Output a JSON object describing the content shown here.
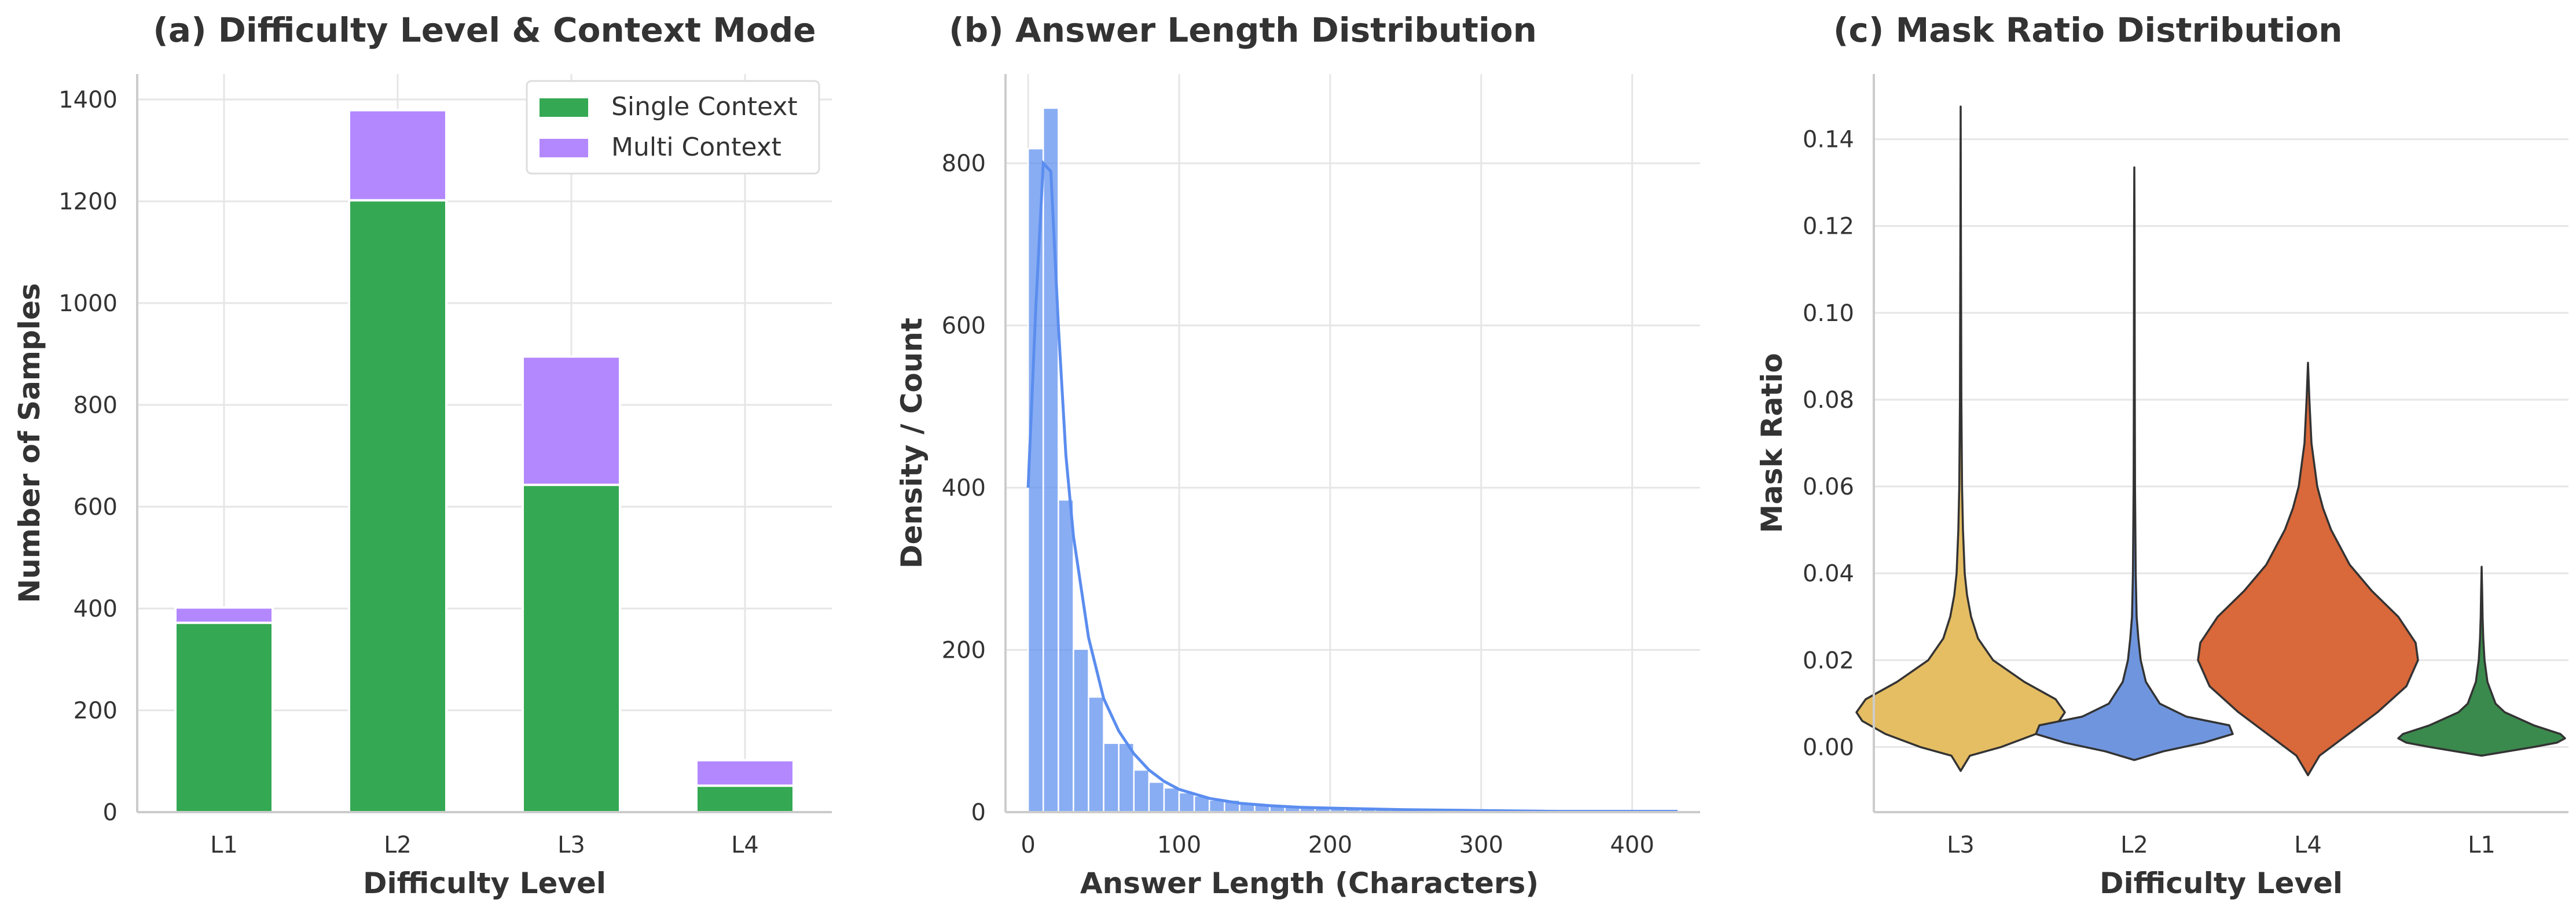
{
  "chart_data": [
    {
      "type": "bar",
      "title": "(a) Difficulty Level & Context Mode",
      "xlabel": "Difficulty Level",
      "ylabel": "Number of Samples",
      "categories": [
        "L1",
        "L2",
        "L3",
        "L4"
      ],
      "stacked": true,
      "series": [
        {
          "name": "Single Context",
          "color": "#34a853",
          "values": [
            372,
            1202,
            643,
            52
          ]
        },
        {
          "name": "Multi Context",
          "color": "#b388ff",
          "values": [
            30,
            177,
            252,
            50
          ]
        }
      ],
      "ylim": [
        0,
        1450
      ],
      "yticks": [
        0,
        200,
        400,
        600,
        800,
        1000,
        1200,
        1400
      ],
      "grid": true,
      "legend_position": "top-right"
    },
    {
      "type": "histogram",
      "title": "(b) Answer Length Distribution",
      "xlabel": "Answer Length (Characters)",
      "ylabel": "Density / Count",
      "color": "#5b8def",
      "bin_width": 10,
      "bins": [
        {
          "start": 0,
          "end": 10,
          "count": 818
        },
        {
          "start": 10,
          "end": 20,
          "count": 868
        },
        {
          "start": 20,
          "end": 30,
          "count": 385
        },
        {
          "start": 30,
          "end": 40,
          "count": 201
        },
        {
          "start": 40,
          "end": 50,
          "count": 142
        },
        {
          "start": 50,
          "end": 60,
          "count": 85
        },
        {
          "start": 60,
          "end": 70,
          "count": 85
        },
        {
          "start": 70,
          "end": 80,
          "count": 52
        },
        {
          "start": 80,
          "end": 90,
          "count": 37
        },
        {
          "start": 90,
          "end": 100,
          "count": 30
        },
        {
          "start": 100,
          "end": 110,
          "count": 24
        },
        {
          "start": 110,
          "end": 120,
          "count": 20
        },
        {
          "start": 120,
          "end": 130,
          "count": 15
        },
        {
          "start": 130,
          "end": 140,
          "count": 15
        },
        {
          "start": 140,
          "end": 150,
          "count": 10
        },
        {
          "start": 150,
          "end": 160,
          "count": 9
        },
        {
          "start": 160,
          "end": 170,
          "count": 8
        },
        {
          "start": 170,
          "end": 180,
          "count": 8
        },
        {
          "start": 180,
          "end": 190,
          "count": 7
        },
        {
          "start": 190,
          "end": 200,
          "count": 6
        },
        {
          "start": 200,
          "end": 210,
          "count": 6
        },
        {
          "start": 210,
          "end": 220,
          "count": 5
        },
        {
          "start": 220,
          "end": 230,
          "count": 5
        },
        {
          "start": 230,
          "end": 240,
          "count": 5
        },
        {
          "start": 240,
          "end": 250,
          "count": 4
        },
        {
          "start": 250,
          "end": 260,
          "count": 4
        },
        {
          "start": 260,
          "end": 270,
          "count": 4
        },
        {
          "start": 270,
          "end": 280,
          "count": 3
        },
        {
          "start": 280,
          "end": 290,
          "count": 3
        },
        {
          "start": 290,
          "end": 300,
          "count": 3
        },
        {
          "start": 300,
          "end": 310,
          "count": 3
        },
        {
          "start": 310,
          "end": 320,
          "count": 2
        },
        {
          "start": 320,
          "end": 330,
          "count": 2
        },
        {
          "start": 330,
          "end": 340,
          "count": 2
        },
        {
          "start": 340,
          "end": 350,
          "count": 2
        },
        {
          "start": 350,
          "end": 360,
          "count": 2
        },
        {
          "start": 360,
          "end": 370,
          "count": 2
        },
        {
          "start": 370,
          "end": 380,
          "count": 2
        },
        {
          "start": 380,
          "end": 390,
          "count": 1
        },
        {
          "start": 390,
          "end": 400,
          "count": 1
        },
        {
          "start": 400,
          "end": 410,
          "count": 1
        },
        {
          "start": 410,
          "end": 420,
          "count": 1
        },
        {
          "start": 420,
          "end": 430,
          "count": 1
        }
      ],
      "kde": [
        [
          0,
          400
        ],
        [
          5,
          620
        ],
        [
          10,
          800
        ],
        [
          15,
          790
        ],
        [
          20,
          600
        ],
        [
          25,
          440
        ],
        [
          30,
          340
        ],
        [
          40,
          215
        ],
        [
          50,
          140
        ],
        [
          60,
          100
        ],
        [
          70,
          72
        ],
        [
          80,
          52
        ],
        [
          90,
          38
        ],
        [
          100,
          28
        ],
        [
          120,
          17
        ],
        [
          140,
          11
        ],
        [
          160,
          8
        ],
        [
          180,
          6
        ],
        [
          200,
          5
        ],
        [
          250,
          3
        ],
        [
          300,
          2
        ],
        [
          350,
          1
        ],
        [
          400,
          1
        ],
        [
          430,
          1
        ]
      ],
      "xlim": [
        -15,
        445
      ],
      "ylim": [
        0,
        910
      ],
      "xticks": [
        0,
        100,
        200,
        300,
        400
      ],
      "yticks": [
        0,
        200,
        400,
        600,
        800
      ],
      "grid": true
    },
    {
      "type": "violin",
      "title": "(c) Mask Ratio Distribution",
      "xlabel": "Difficulty Level",
      "ylabel": "Mask Ratio",
      "categories": [
        "L3",
        "L2",
        "L4",
        "L1"
      ],
      "series": [
        {
          "category": "L3",
          "color": "#e5bd63",
          "min": -0.0055,
          "max": 0.1475,
          "profile": [
            [
              -0.0055,
              0
            ],
            [
              -0.002,
              0.08
            ],
            [
              0.0,
              0.35
            ],
            [
              0.003,
              0.65
            ],
            [
              0.006,
              0.85
            ],
            [
              0.008,
              0.9
            ],
            [
              0.011,
              0.82
            ],
            [
              0.015,
              0.55
            ],
            [
              0.02,
              0.28
            ],
            [
              0.025,
              0.15
            ],
            [
              0.03,
              0.09
            ],
            [
              0.035,
              0.055
            ],
            [
              0.04,
              0.035
            ],
            [
              0.05,
              0.02
            ],
            [
              0.06,
              0.012
            ],
            [
              0.08,
              0.006
            ],
            [
              0.1,
              0.004
            ],
            [
              0.12,
              0.002
            ],
            [
              0.1475,
              0
            ]
          ]
        },
        {
          "category": "L2",
          "color": "#6f95de",
          "min": -0.003,
          "max": 0.1335,
          "profile": [
            [
              -0.003,
              0
            ],
            [
              -0.001,
              0.25
            ],
            [
              0.001,
              0.6
            ],
            [
              0.003,
              0.85
            ],
            [
              0.005,
              0.82
            ],
            [
              0.007,
              0.45
            ],
            [
              0.01,
              0.22
            ],
            [
              0.015,
              0.1
            ],
            [
              0.02,
              0.055
            ],
            [
              0.025,
              0.035
            ],
            [
              0.03,
              0.02
            ],
            [
              0.04,
              0.012
            ],
            [
              0.06,
              0.006
            ],
            [
              0.08,
              0.004
            ],
            [
              0.1,
              0.003
            ],
            [
              0.12,
              0.002
            ],
            [
              0.1335,
              0
            ]
          ]
        },
        {
          "category": "L4",
          "color": "#d9683a",
          "min": -0.0065,
          "max": 0.0885,
          "profile": [
            [
              -0.0065,
              0
            ],
            [
              -0.002,
              0.1
            ],
            [
              0.002,
              0.3
            ],
            [
              0.008,
              0.6
            ],
            [
              0.014,
              0.85
            ],
            [
              0.02,
              0.95
            ],
            [
              0.024,
              0.93
            ],
            [
              0.03,
              0.78
            ],
            [
              0.036,
              0.55
            ],
            [
              0.042,
              0.36
            ],
            [
              0.05,
              0.2
            ],
            [
              0.055,
              0.13
            ],
            [
              0.06,
              0.08
            ],
            [
              0.07,
              0.03
            ],
            [
              0.08,
              0.012
            ],
            [
              0.0885,
              0
            ]
          ]
        },
        {
          "category": "L1",
          "color": "#3b8a4d",
          "min": -0.002,
          "max": 0.0415,
          "profile": [
            [
              -0.002,
              0
            ],
            [
              0.0,
              0.45
            ],
            [
              0.001,
              0.65
            ],
            [
              0.002,
              0.72
            ],
            [
              0.003,
              0.68
            ],
            [
              0.005,
              0.45
            ],
            [
              0.008,
              0.2
            ],
            [
              0.01,
              0.12
            ],
            [
              0.015,
              0.05
            ],
            [
              0.02,
              0.025
            ],
            [
              0.025,
              0.014
            ],
            [
              0.03,
              0.008
            ],
            [
              0.035,
              0.005
            ],
            [
              0.0415,
              0
            ]
          ]
        }
      ],
      "ylim": [
        -0.015,
        0.155
      ],
      "yticks": [
        0.0,
        0.02,
        0.04,
        0.06,
        0.08,
        0.1,
        0.12,
        0.14
      ],
      "ytick_labels": [
        "0.00",
        "0.02",
        "0.04",
        "0.06",
        "0.08",
        "0.10",
        "0.12",
        "0.14"
      ],
      "grid": true
    }
  ]
}
